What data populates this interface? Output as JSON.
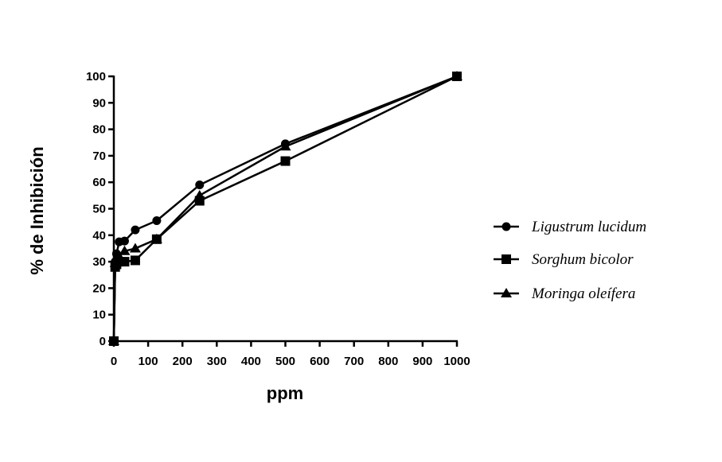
{
  "chart_data": {
    "type": "line",
    "title": "",
    "xlabel": "ppm",
    "ylabel": "% de Inhibición",
    "xlim": [
      0,
      1000
    ],
    "ylim": [
      0,
      100
    ],
    "xticks": [
      0,
      100,
      200,
      300,
      400,
      500,
      600,
      700,
      800,
      900,
      1000
    ],
    "yticks": [
      0,
      10,
      20,
      30,
      40,
      50,
      60,
      70,
      80,
      90,
      100
    ],
    "grid": false,
    "legend_position": "right",
    "series": [
      {
        "name": "Ligustrum lucidum",
        "marker": "circle",
        "x": [
          0,
          3.9,
          7.8,
          15.6,
          31.25,
          62.5,
          125,
          250,
          500,
          1000
        ],
        "y": [
          0,
          30,
          33,
          37.5,
          37.8,
          42,
          45.5,
          59,
          74.5,
          100
        ]
      },
      {
        "name": "Sorghum bicolor",
        "marker": "square",
        "x": [
          0,
          3.9,
          7.8,
          15.6,
          31.25,
          62.5,
          125,
          250,
          500,
          1000
        ],
        "y": [
          0,
          28,
          29,
          30,
          30,
          30.5,
          38.5,
          53,
          68,
          100
        ]
      },
      {
        "name": "Moringa oleífera",
        "marker": "triangle",
        "x": [
          0,
          3.9,
          7.8,
          15.6,
          31.25,
          62.5,
          125,
          250,
          500,
          1000
        ],
        "y": [
          0,
          29.5,
          31,
          32,
          34,
          35,
          38.5,
          55,
          73.5,
          100
        ]
      }
    ]
  }
}
